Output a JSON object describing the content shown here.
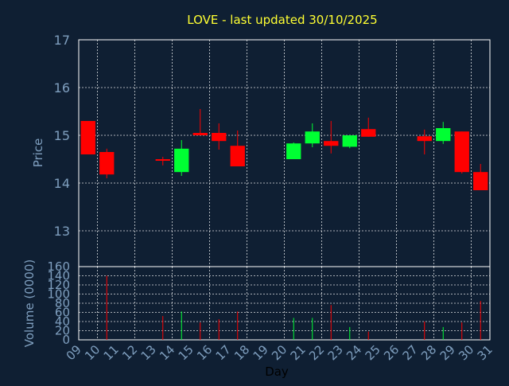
{
  "colors": {
    "background": "#0f1f33",
    "up": "#00ff33",
    "down": "#ff0000",
    "title": "#ffff33",
    "axis_text": "#7f9fbf",
    "xlabel": "#000000",
    "grid": "#ffffff"
  },
  "chart_data": [
    {
      "type": "candlestick",
      "title": "LOVE - last updated 30/10/2025",
      "ylabel": "Price",
      "ylim": [
        12.25,
        17
      ],
      "yticks": [
        13,
        14,
        15,
        16,
        17
      ],
      "grid": true,
      "candles": [
        {
          "day": 9,
          "open": 15.3,
          "close": 14.6,
          "high": 15.3,
          "low": 14.6
        },
        {
          "day": 10,
          "open": 14.65,
          "close": 14.18,
          "high": 14.72,
          "low": 14.1
        },
        {
          "day": 13,
          "open": 14.5,
          "close": 14.48,
          "high": 14.55,
          "low": 14.37
        },
        {
          "day": 14,
          "open": 14.23,
          "close": 14.72,
          "high": 14.9,
          "low": 14.15
        },
        {
          "day": 15,
          "open": 15.05,
          "close": 15.0,
          "high": 15.55,
          "low": 15.0
        },
        {
          "day": 16,
          "open": 15.05,
          "close": 14.88,
          "high": 15.25,
          "low": 14.7
        },
        {
          "day": 17,
          "open": 14.78,
          "close": 14.35,
          "high": 15.1,
          "low": 14.35
        },
        {
          "day": 20,
          "open": 14.5,
          "close": 14.83,
          "high": 14.85,
          "low": 14.5
        },
        {
          "day": 21,
          "open": 14.83,
          "close": 15.08,
          "high": 15.25,
          "low": 14.75
        },
        {
          "day": 22,
          "open": 14.88,
          "close": 14.78,
          "high": 15.3,
          "low": 14.62
        },
        {
          "day": 23,
          "open": 14.76,
          "close": 15.0,
          "high": 15.0,
          "low": 14.73
        },
        {
          "day": 24,
          "open": 15.13,
          "close": 14.97,
          "high": 15.37,
          "low": 14.97
        },
        {
          "day": 27,
          "open": 14.98,
          "close": 14.88,
          "high": 15.12,
          "low": 14.6
        },
        {
          "day": 28,
          "open": 14.88,
          "close": 15.15,
          "high": 15.28,
          "low": 14.82
        },
        {
          "day": 29,
          "open": 15.08,
          "close": 14.23,
          "high": 15.08,
          "low": 14.2
        },
        {
          "day": 30,
          "open": 14.23,
          "close": 13.85,
          "high": 14.4,
          "low": 13.85
        }
      ]
    },
    {
      "type": "bar",
      "ylabel": "Volume (0000)",
      "ylim": [
        0,
        160
      ],
      "yticks": [
        0,
        20,
        40,
        60,
        80,
        100,
        120,
        140,
        160
      ],
      "xlabel": "Day",
      "xlim": [
        9,
        31
      ],
      "xticks": [
        "09",
        "10",
        "11",
        "12",
        "13",
        "14",
        "15",
        "16",
        "17",
        "18",
        "19",
        "20",
        "21",
        "22",
        "23",
        "24",
        "25",
        "26",
        "27",
        "28",
        "29",
        "30",
        "31"
      ],
      "grid": true,
      "bars": [
        {
          "day": 9,
          "value": 0,
          "direction": "down"
        },
        {
          "day": 10,
          "value": 140,
          "direction": "down"
        },
        {
          "day": 13,
          "value": 52,
          "direction": "down"
        },
        {
          "day": 14,
          "value": 62,
          "direction": "up"
        },
        {
          "day": 15,
          "value": 38,
          "direction": "down"
        },
        {
          "day": 16,
          "value": 45,
          "direction": "down"
        },
        {
          "day": 17,
          "value": 62,
          "direction": "down"
        },
        {
          "day": 20,
          "value": 48,
          "direction": "up"
        },
        {
          "day": 21,
          "value": 48,
          "direction": "up"
        },
        {
          "day": 22,
          "value": 76,
          "direction": "down"
        },
        {
          "day": 23,
          "value": 28,
          "direction": "up"
        },
        {
          "day": 24,
          "value": 18,
          "direction": "down"
        },
        {
          "day": 27,
          "value": 40,
          "direction": "down"
        },
        {
          "day": 28,
          "value": 28,
          "direction": "up"
        },
        {
          "day": 29,
          "value": 38,
          "direction": "down"
        },
        {
          "day": 30,
          "value": 85,
          "direction": "down"
        }
      ]
    }
  ]
}
